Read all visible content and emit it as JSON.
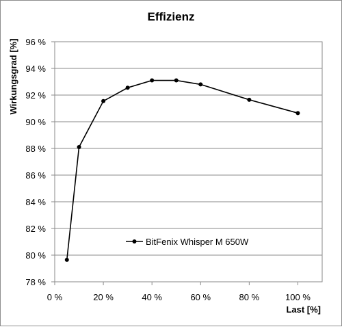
{
  "chart_data": {
    "type": "line",
    "title": "Effizienz",
    "xlabel": "Last [%]",
    "ylabel": "Wirkungsgrad [%]",
    "xlim": [
      0,
      110
    ],
    "ylim": [
      78,
      96
    ],
    "x_ticks": [
      0,
      20,
      40,
      60,
      80,
      100
    ],
    "x_tick_labels": [
      "0 %",
      "20 %",
      "40 %",
      "60 %",
      "80 %",
      "100 %"
    ],
    "y_ticks": [
      78,
      80,
      82,
      84,
      86,
      88,
      90,
      92,
      94,
      96
    ],
    "y_tick_labels": [
      "78 %",
      "80 %",
      "82 %",
      "84 %",
      "86 %",
      "88 %",
      "90 %",
      "92 %",
      "94 %",
      "96 %"
    ],
    "grid": "horizontal",
    "legend_position": "inside-bottom-center",
    "series": [
      {
        "name": "BitFenix Whisper M 650W",
        "color": "#000000",
        "marker": "circle",
        "x": [
          5,
          10,
          20,
          30,
          40,
          50,
          60,
          80,
          100
        ],
        "y": [
          79.65,
          88.1,
          91.55,
          92.55,
          93.1,
          93.1,
          92.8,
          91.65,
          90.65
        ]
      }
    ]
  }
}
